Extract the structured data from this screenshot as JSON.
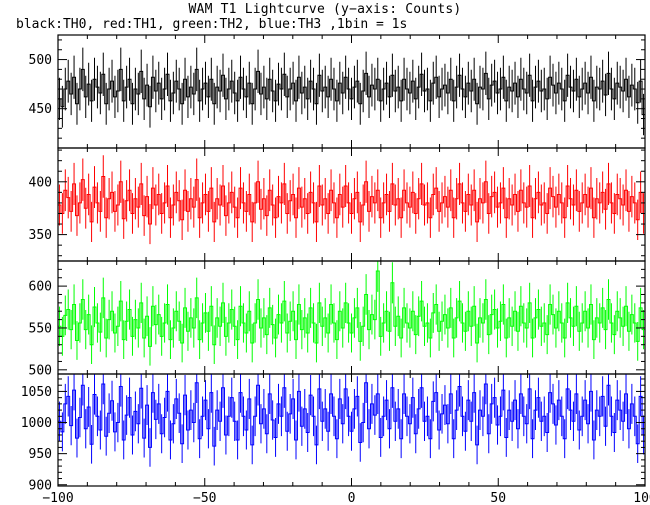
{
  "chart_data": {
    "type": "line",
    "title": "WAM T1 Lightcurve (y−axis: Counts)",
    "subtitle": "black:TH0, red:TH1, green:TH2, blue:TH3 ,1bin = 1s",
    "x_range": [
      -100,
      100
    ],
    "x_ticks": [
      -100,
      -50,
      0,
      50,
      100
    ],
    "x_tick_labels": [
      "−100",
      "−50",
      "0",
      "50",
      "100"
    ],
    "bin_width": 1,
    "error_bars": true,
    "panels": [
      {
        "series": "TH0",
        "color": "#000000",
        "ylim": [
          410,
          525
        ],
        "y_ticks": [
          450,
          500
        ],
        "y_tick_labels": [
          "450",
          "500"
        ],
        "mean": 465,
        "noise": 20,
        "values": [
          460,
          452,
          470,
          478,
          465,
          482,
          455,
          470,
          490,
          462,
          475,
          458,
          480,
          472,
          466,
          485,
          455,
          470,
          478,
          462,
          468,
          490,
          458,
          472,
          480,
          455,
          470,
          465,
          488,
          460,
          474,
          452,
          482,
          468,
          476,
          460,
          470,
          485,
          458,
          466,
          478,
          470,
          455,
          480,
          462,
          472,
          465,
          490,
          458,
          470,
          476,
          462,
          480,
          455,
          472,
          468,
          484,
          460,
          470,
          478,
          466,
          458,
          482,
          470,
          462,
          476,
          455,
          470,
          488,
          465,
          472,
          460,
          480,
          468,
          458,
          475,
          470,
          485,
          462,
          470,
          476,
          458,
          482,
          466,
          472,
          460,
          478,
          470,
          455,
          484,
          468,
          472,
          462,
          480,
          470,
          458,
          476,
          466,
          482,
          470,
          460,
          472,
          478,
          455,
          468,
          486,
          462,
          474,
          470,
          480,
          458,
          470,
          476,
          462,
          484,
          468,
          472,
          458,
          480,
          470,
          466,
          478,
          460,
          472,
          485,
          468,
          470,
          458,
          476,
          482,
          462,
          470,
          474,
          466,
          480,
          458,
          472,
          484,
          470,
          462,
          476,
          468,
          480,
          455,
          472,
          470,
          486,
          460,
          474,
          478,
          466,
          470,
          482,
          458,
          472,
          468,
          476,
          462,
          480,
          470,
          466,
          484,
          458,
          472,
          478,
          468,
          470,
          460,
          482,
          474,
          466,
          476,
          470,
          458,
          484,
          472,
          468,
          480,
          462,
          470,
          476,
          466,
          482,
          458,
          472,
          470,
          478,
          464,
          486,
          470,
          460,
          476,
          472,
          468,
          480,
          462,
          474,
          470,
          456,
          478,
          444
        ]
      },
      {
        "series": "TH1",
        "color": "#ff0000",
        "ylim": [
          325,
          432
        ],
        "y_ticks": [
          350,
          400
        ],
        "y_tick_labels": [
          "350",
          "400"
        ],
        "mean": 375,
        "noise": 18,
        "values": [
          378,
          370,
          392,
          385,
          372,
          398,
          368,
          380,
          402,
          375,
          388,
          362,
          395,
          380,
          372,
          405,
          366,
          384,
          390,
          372,
          378,
          400,
          365,
          382,
          392,
          370,
          384,
          376,
          398,
          368,
          386,
          360,
          394,
          378,
          388,
          370,
          380,
          396,
          366,
          378,
          390,
          382,
          364,
          392,
          372,
          384,
          376,
          402,
          366,
          380,
          388,
          372,
          394,
          362,
          384,
          378,
          396,
          368,
          380,
          390,
          376,
          366,
          394,
          380,
          372,
          388,
          362,
          380,
          400,
          374,
          384,
          368,
          392,
          378,
          366,
          386,
          380,
          398,
          370,
          382,
          388,
          366,
          394,
          376,
          384,
          370,
          390,
          380,
          362,
          396,
          378,
          384,
          370,
          392,
          380,
          366,
          388,
          376,
          396,
          380,
          370,
          384,
          390,
          362,
          378,
          400,
          372,
          386,
          380,
          392,
          366,
          380,
          388,
          372,
          398,
          378,
          384,
          366,
          392,
          380,
          376,
          390,
          370,
          384,
          398,
          378,
          380,
          366,
          388,
          394,
          372,
          380,
          386,
          376,
          392,
          366,
          384,
          398,
          380,
          372,
          388,
          378,
          392,
          362,
          384,
          380,
          400,
          370,
          386,
          390,
          376,
          380,
          394,
          366,
          384,
          378,
          388,
          372,
          392,
          380,
          376,
          396,
          366,
          384,
          390,
          378,
          380,
          370,
          394,
          386,
          376,
          388,
          380,
          366,
          396,
          384,
          378,
          392,
          372,
          380,
          388,
          376,
          394,
          366,
          384,
          380,
          390,
          374,
          398,
          380,
          370,
          388,
          384,
          378,
          392,
          372,
          386,
          380,
          364,
          390,
          370
        ]
      },
      {
        "series": "TH2",
        "color": "#00ff00",
        "ylim": [
          495,
          630
        ],
        "y_ticks": [
          500,
          550,
          600
        ],
        "y_tick_labels": [
          "500",
          "550",
          "600"
        ],
        "mean": 550,
        "noise": 22,
        "values": [
          552,
          540,
          565,
          572,
          548,
          578,
          535,
          556,
          584,
          548,
          566,
          530,
          575,
          556,
          545,
          586,
          538,
          560,
          570,
          544,
          552,
          582,
          536,
          558,
          572,
          540,
          560,
          550,
          580,
          538,
          564,
          528,
          576,
          554,
          566,
          540,
          556,
          578,
          536,
          550,
          570,
          558,
          532,
          574,
          546,
          562,
          550,
          586,
          536,
          556,
          568,
          546,
          576,
          530,
          562,
          552,
          580,
          540,
          556,
          572,
          552,
          536,
          576,
          556,
          544,
          570,
          532,
          556,
          584,
          550,
          562,
          542,
          574,
          554,
          538,
          566,
          556,
          582,
          544,
          558,
          570,
          536,
          578,
          548,
          562,
          544,
          574,
          556,
          532,
          580,
          552,
          562,
          544,
          578,
          556,
          536,
          570,
          550,
          580,
          556,
          544,
          562,
          574,
          534,
          552,
          590,
          548,
          566,
          560,
          618,
          540,
          556,
          570,
          546,
          604,
          552,
          564,
          538,
          574,
          556,
          550,
          570,
          542,
          564,
          582,
          552,
          556,
          538,
          568,
          578,
          546,
          558,
          566,
          550,
          574,
          538,
          562,
          582,
          556,
          546,
          570,
          552,
          576,
          532,
          562,
          556,
          584,
          542,
          566,
          572,
          550,
          558,
          578,
          538,
          562,
          552,
          570,
          546,
          576,
          556,
          550,
          580,
          538,
          562,
          572,
          552,
          556,
          542,
          578,
          566,
          550,
          570,
          556,
          538,
          580,
          562,
          552,
          576,
          546,
          556,
          570,
          550,
          578,
          536,
          562,
          556,
          574,
          548,
          584,
          556,
          542,
          570,
          562,
          552,
          576,
          546,
          566,
          556,
          534,
          574,
          548
        ]
      },
      {
        "series": "TH3",
        "color": "#0000ff",
        "ylim": [
          898,
          1078
        ],
        "y_ticks": [
          900,
          950,
          1000,
          1050
        ],
        "y_tick_labels": [
          "900",
          "950",
          "1000",
          "1050"
        ],
        "mean": 1000,
        "noise": 35,
        "values": [
          1002,
          985,
          1030,
          1042,
          995,
          1052,
          975,
          1008,
          1060,
          990,
          1025,
          965,
          1045,
          1010,
          988,
          1062,
          978,
          1015,
          1035,
          985,
          1000,
          1058,
          972,
          1012,
          1040,
          980,
          1018,
          998,
          1055,
          975,
          1028,
          960,
          1048,
          1005,
          1030,
          982,
          1008,
          1050,
          972,
          998,
          1038,
          1015,
          966,
          1044,
          988,
          1020,
          1000,
          1064,
          974,
          1010,
          1036,
          990,
          1048,
          962,
          1020,
          1002,
          1056,
          980,
          1010,
          1040,
          1002,
          972,
          1048,
          1010,
          988,
          1038,
          964,
          1010,
          1060,
          998,
          1022,
          982,
          1046,
          1004,
          976,
          1030,
          1010,
          1056,
          986,
          1014,
          1038,
          972,
          1050,
          994,
          1022,
          984,
          1044,
          1010,
          964,
          1054,
          1002,
          1022,
          986,
          1046,
          1010,
          974,
          1038,
          998,
          1054,
          1010,
          986,
          1022,
          1042,
          968,
          1000,
          1064,
          990,
          1030,
          1012,
          1046,
          976,
          1010,
          1036,
          990,
          1056,
          1002,
          1022,
          974,
          1046,
          1010,
          998,
          1040,
          982,
          1022,
          1056,
          1002,
          1010,
          974,
          1034,
          1048,
          988,
          1014,
          1028,
          998,
          1046,
          974,
          1020,
          1058,
          1010,
          986,
          1036,
          1002,
          1048,
          964,
          1020,
          1010,
          1062,
          982,
          1030,
          1040,
          996,
          1010,
          1052,
          976,
          1020,
          1002,
          1036,
          990,
          1046,
          1010,
          998,
          1054,
          974,
          1020,
          1040,
          1002,
          1010,
          984,
          1048,
          1030,
          996,
          1036,
          1010,
          974,
          1054,
          1020,
          1002,
          1046,
          988,
          1010,
          1036,
          998,
          1050,
          972,
          1020,
          1010,
          1042,
          994,
          1060,
          1010,
          984,
          1036,
          1020,
          1002,
          1046,
          990,
          1030,
          1010,
          966,
          1042,
          980
        ]
      }
    ]
  }
}
